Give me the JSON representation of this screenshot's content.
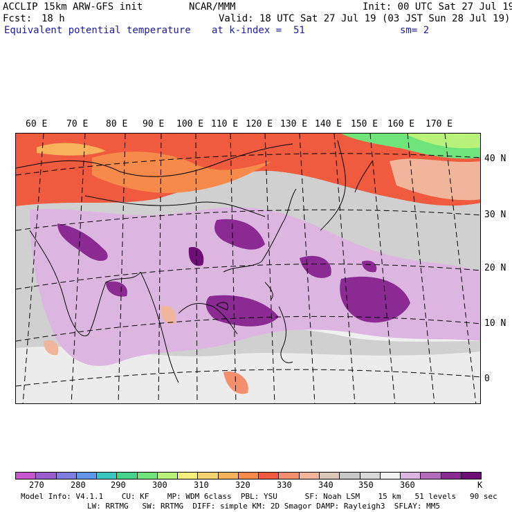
{
  "header": {
    "model": "ACCLIP 15km ARW-GFS init",
    "org": "NCAR/MMM",
    "init": "Init: 00 UTC Sat 27 Jul 19",
    "fcst_label": "Fcst:",
    "fcst_value": "18 h",
    "valid": "Valid: 18 UTC Sat 27 Jul 19 (03 JST Sun 28 Jul 19)",
    "field": "Equivalent potential temperature",
    "level": "at k-index =  51",
    "smooth": "sm= 2"
  },
  "map": {
    "lon_labels": [
      "60 E",
      "70 E",
      "80 E",
      "90 E",
      "100 E",
      "110 E",
      "120 E",
      "130 E",
      "140 E",
      "150 E",
      "160 E",
      "170 E"
    ],
    "lat_labels": [
      "40 N",
      "30 N",
      "20 N",
      "10 N",
      "0"
    ]
  },
  "colorbar": {
    "colors": [
      "#c657cf",
      "#9a5ccf",
      "#7f7de0",
      "#5f96ea",
      "#3cc8c0",
      "#47d48a",
      "#6fe47a",
      "#b8f27a",
      "#f2f07a",
      "#f7d270",
      "#f7b25a",
      "#f58a4a",
      "#f05a3e",
      "#f48f6e",
      "#f0b59a",
      "#dbc7b8",
      "#c8c8c8",
      "#d9d9d9",
      "#f2f2f2",
      "#dcb6e0",
      "#b56abe",
      "#8a2a92",
      "#6e0f78"
    ],
    "labels": [
      "270",
      "280",
      "290",
      "300",
      "310",
      "320",
      "330",
      "340",
      "350",
      "360",
      "K"
    ]
  },
  "footer": {
    "line1": "Model Info: V4.1.1    CU: KF    MP: WDM 6class  PBL: YSU      SF: Noah LSM    15 km   51 levels   90 sec",
    "line2": "LW: RRTMG   SW: RRTMG  DIFF: simple KM: 2D Smagor DAMP: Rayleigh3  SFLAY: MM5"
  }
}
